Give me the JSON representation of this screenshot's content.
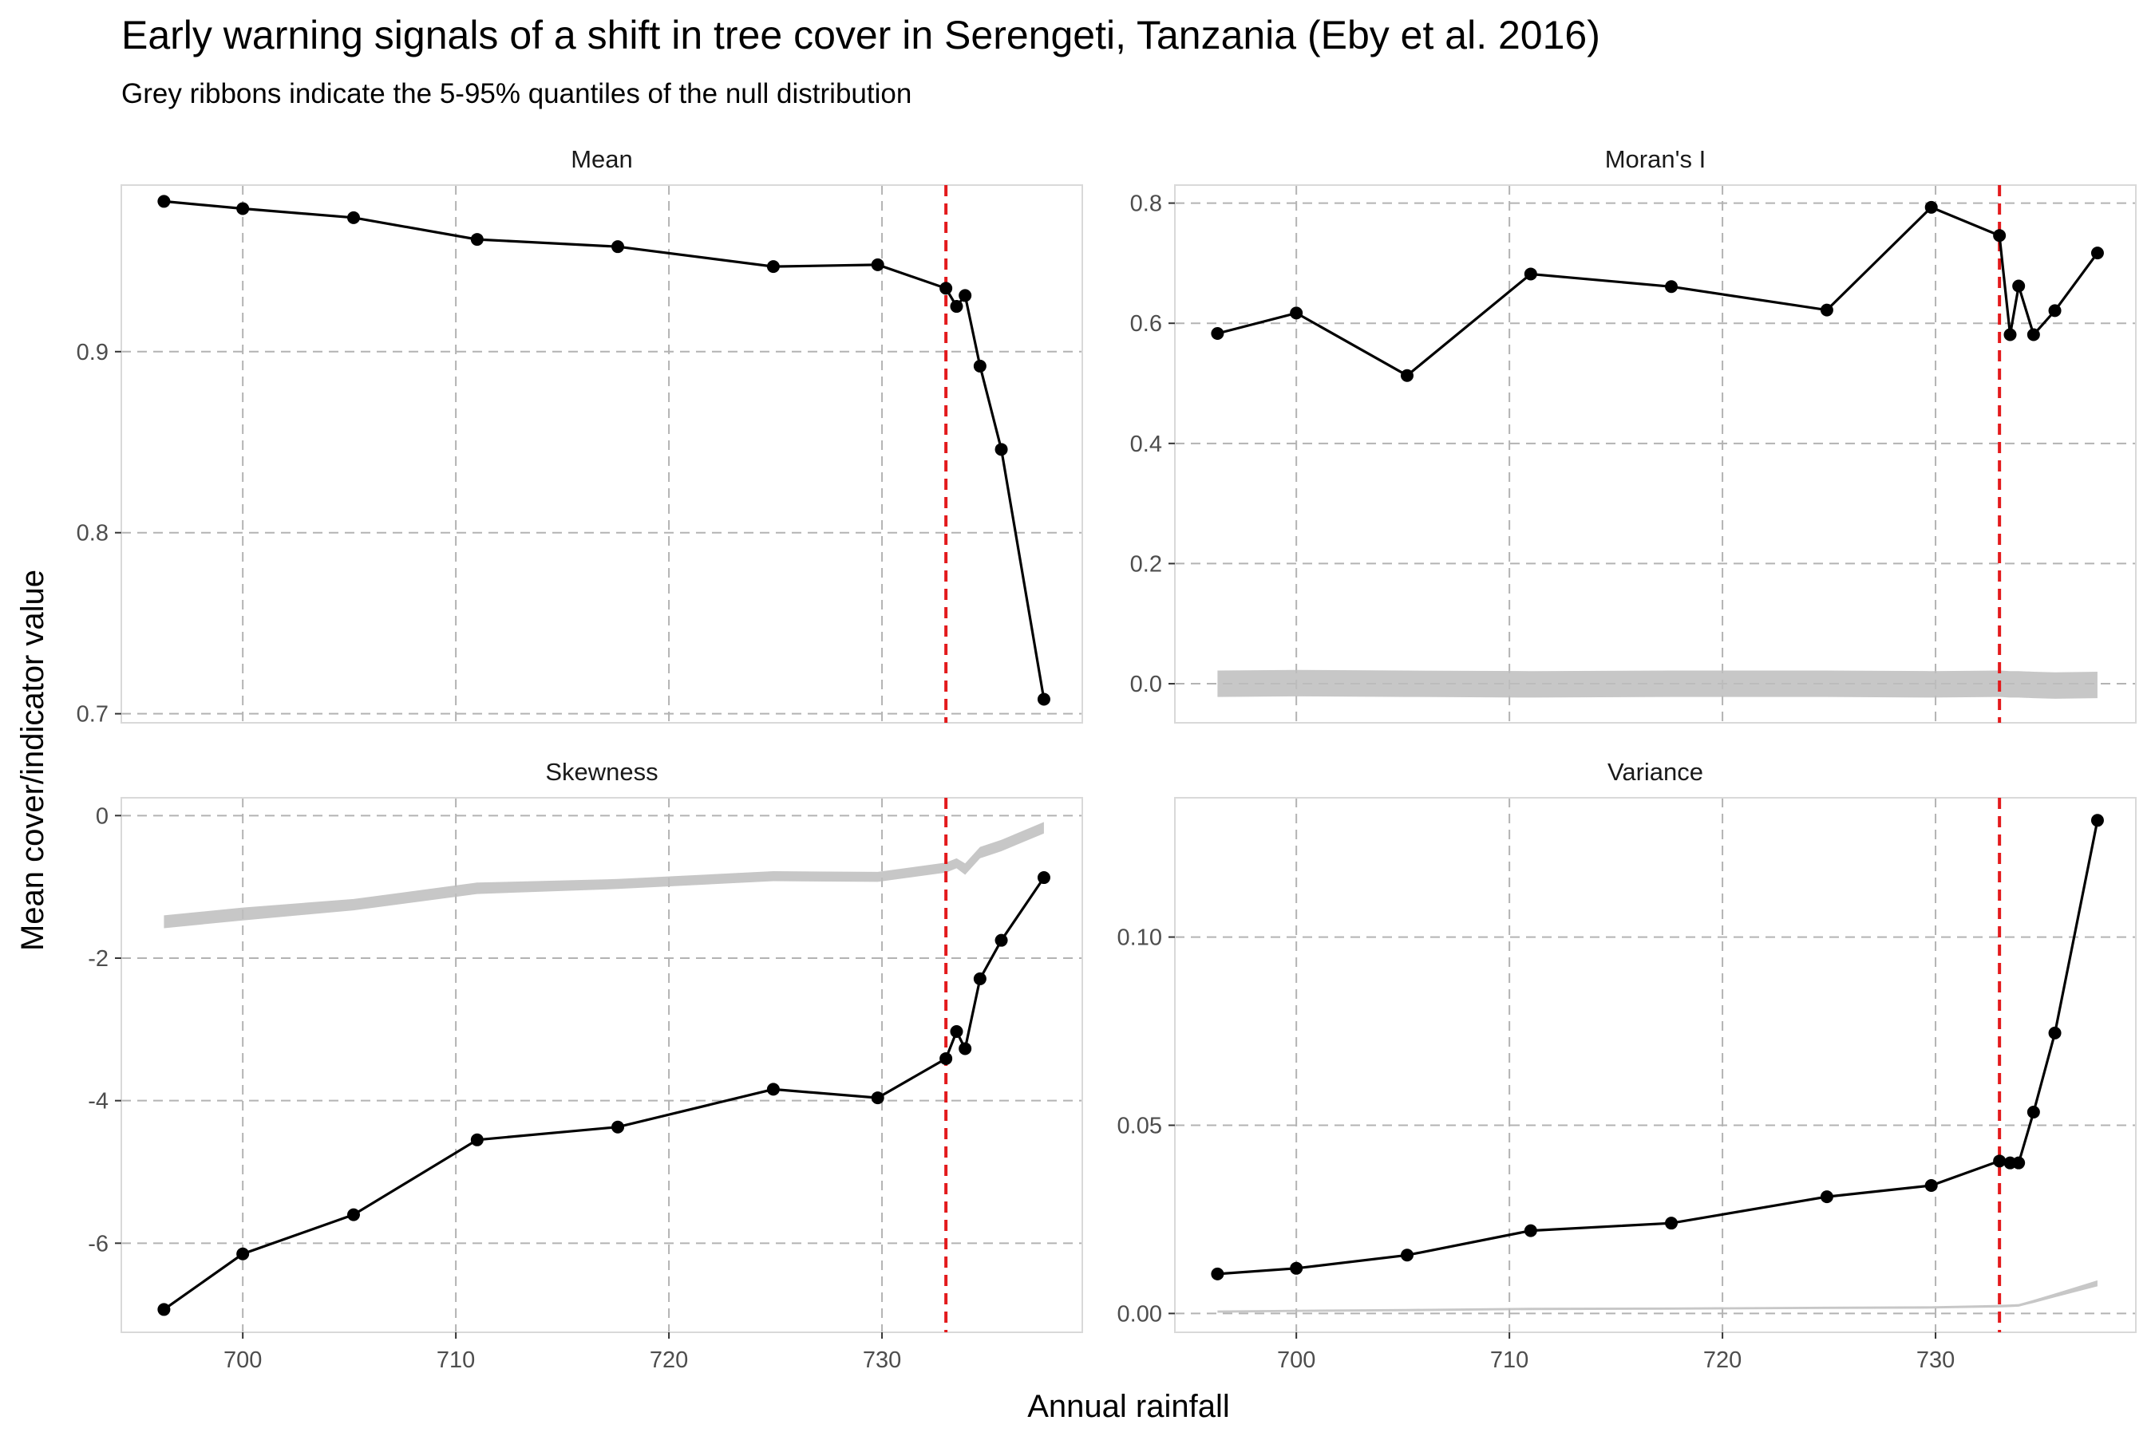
{
  "title": "Early warning signals of a shift in tree cover in Serengeti, Tanzania (Eby et al. 2016)",
  "subtitle": "Grey ribbons indicate the 5-95% quantiles of the null distribution",
  "chart_data": {
    "type": "line",
    "xlabel": "Annual rainfall",
    "ylabel": "Mean cover/indicator value",
    "threshold_x": 733,
    "colors": {
      "series": "#000000",
      "threshold": "#e31a1c",
      "ribbon": "#bdbdbd",
      "grid": "#b3b3b3",
      "panel_border": "#d9d9d9"
    },
    "grid": true,
    "x": [
      696.3,
      700,
      705.2,
      711,
      717.6,
      724.9,
      729.8,
      733,
      733.5,
      733.9,
      734.6,
      735.6,
      737.6
    ],
    "xlim": [
      694.3,
      739.4
    ],
    "xticks": [
      700,
      710,
      720,
      730
    ],
    "xtick_labels": [
      "700",
      "710",
      "720",
      "730"
    ],
    "panels": [
      {
        "name": "Mean",
        "values": [
          0.983,
          0.979,
          0.974,
          0.962,
          0.958,
          0.947,
          0.948,
          0.935,
          0.925,
          0.931,
          0.892,
          0.846,
          0.708
        ],
        "ylim": [
          0.695,
          0.992
        ],
        "yticks": [
          0.7,
          0.8,
          0.9
        ],
        "ytick_labels": [
          "0.7",
          "0.8",
          "0.9"
        ],
        "ribbon": null
      },
      {
        "name": "Moran's I",
        "values": [
          0.583,
          0.617,
          0.513,
          0.682,
          0.661,
          0.622,
          0.793,
          0.746,
          0.581,
          0.662,
          0.581,
          0.621,
          0.717
        ],
        "ylim": [
          -0.065,
          0.83
        ],
        "yticks": [
          0,
          0.2,
          0.4,
          0.6,
          0.8
        ],
        "ytick_labels": [
          "0.0",
          "0.2",
          "0.4",
          "0.6",
          "0.8"
        ],
        "ribbon": {
          "x": [
            696.3,
            700,
            705.2,
            711,
            717.6,
            724.9,
            729.8,
            733,
            733.5,
            733.9,
            734.6,
            735.6,
            737.6
          ],
          "lower": [
            -0.022,
            -0.021,
            -0.022,
            -0.023,
            -0.022,
            -0.022,
            -0.023,
            -0.022,
            -0.023,
            -0.023,
            -0.024,
            -0.025,
            -0.024
          ],
          "upper": [
            0.022,
            0.023,
            0.022,
            0.021,
            0.022,
            0.022,
            0.021,
            0.022,
            0.021,
            0.021,
            0.02,
            0.019,
            0.02
          ]
        }
      },
      {
        "name": "Skewness",
        "values": [
          -6.93,
          -6.15,
          -5.6,
          -4.55,
          -4.37,
          -3.84,
          -3.96,
          -3.41,
          -3.03,
          -3.27,
          -2.29,
          -1.75,
          -0.87
        ],
        "ylim": [
          -7.25,
          0.25
        ],
        "yticks": [
          -6,
          -4,
          -2,
          0
        ],
        "ytick_labels": [
          "-6",
          "-4",
          "-2",
          "0"
        ],
        "ribbon": {
          "x": [
            696.3,
            700,
            705.2,
            711,
            717.6,
            724.9,
            729.8,
            733,
            733.5,
            733.9,
            734.6,
            735.6,
            737.6
          ],
          "lower": [
            -1.58,
            -1.47,
            -1.33,
            -1.1,
            -1.03,
            -0.92,
            -0.93,
            -0.8,
            -0.74,
            -0.83,
            -0.6,
            -0.5,
            -0.25
          ],
          "upper": [
            -1.4,
            -1.29,
            -1.17,
            -0.94,
            -0.89,
            -0.78,
            -0.79,
            -0.66,
            -0.6,
            -0.67,
            -0.44,
            -0.34,
            -0.09
          ]
        }
      },
      {
        "name": "Variance",
        "values": [
          0.0105,
          0.012,
          0.0155,
          0.022,
          0.024,
          0.031,
          0.034,
          0.0405,
          0.04,
          0.04,
          0.0535,
          0.0745,
          0.131
        ],
        "ylim": [
          -0.005,
          0.137
        ],
        "yticks": [
          0,
          0.05,
          0.1
        ],
        "ytick_labels": [
          "0.00",
          "0.05",
          "0.10"
        ],
        "ribbon": {
          "x": [
            696.3,
            700,
            705.2,
            711,
            717.6,
            724.9,
            729.8,
            733,
            733.5,
            733.9,
            734.6,
            735.6,
            737.6
          ],
          "lower": [
            0.0002,
            0.0004,
            0.0006,
            0.0009,
            0.001,
            0.0012,
            0.0013,
            0.0016,
            0.0017,
            0.0018,
            0.0028,
            0.0043,
            0.0072
          ],
          "upper": [
            0.0008,
            0.001,
            0.0012,
            0.0015,
            0.0016,
            0.0018,
            0.0019,
            0.0023,
            0.0024,
            0.0025,
            0.0036,
            0.0053,
            0.0088
          ]
        }
      }
    ]
  }
}
